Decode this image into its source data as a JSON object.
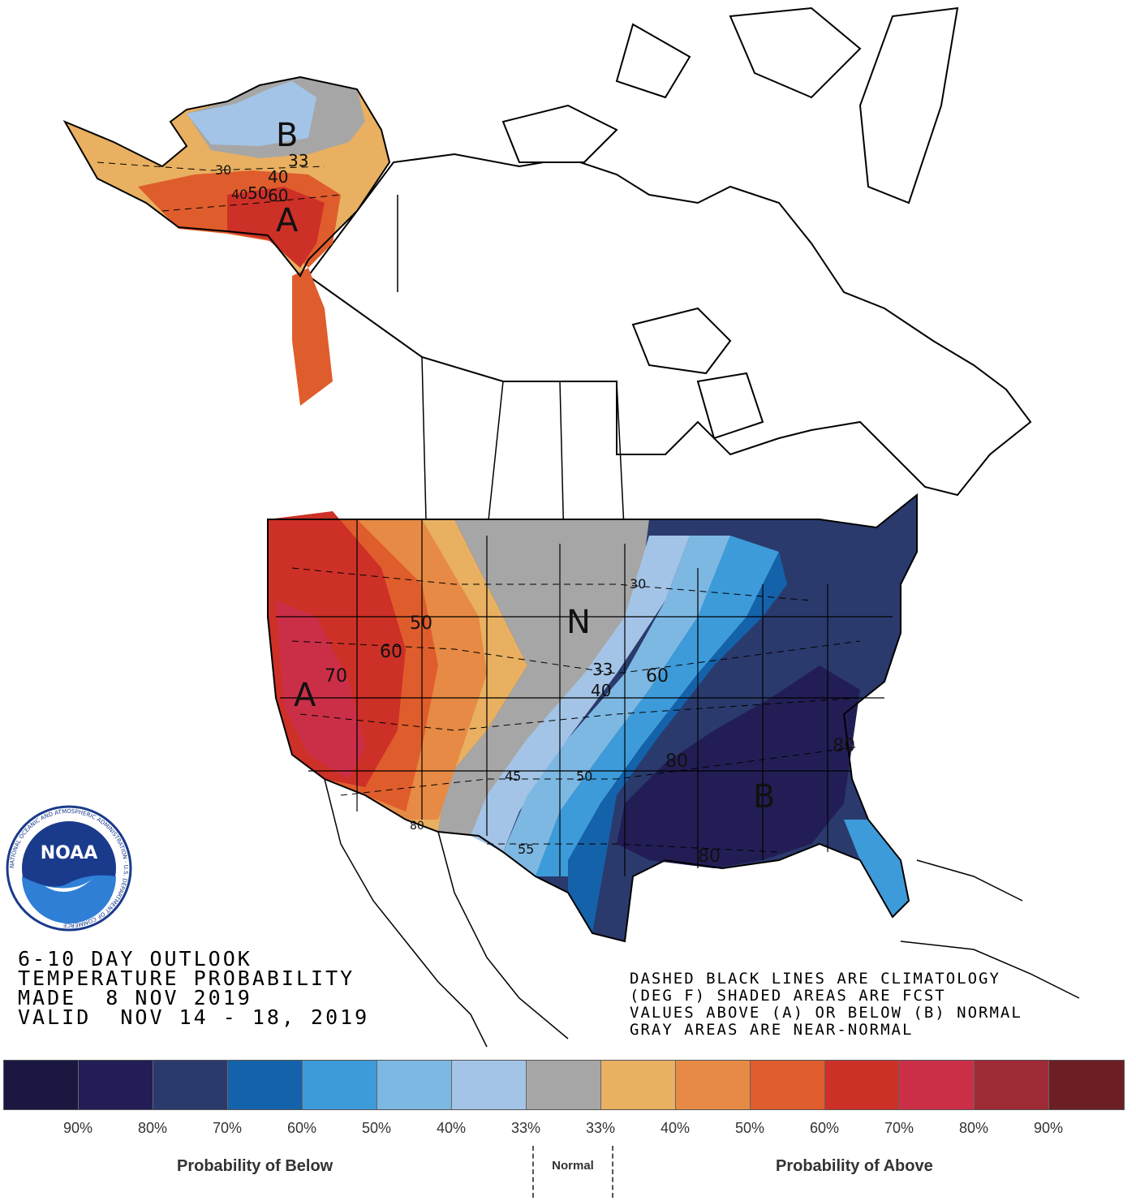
{
  "map": {
    "big_letters": [
      {
        "text": "B",
        "region": "northern-alaska"
      },
      {
        "text": "A",
        "region": "southern-alaska"
      },
      {
        "text": "N",
        "region": "northern-plains"
      },
      {
        "text": "A",
        "region": "california"
      },
      {
        "text": "B",
        "region": "southeast-us"
      }
    ],
    "contour_labels": [
      "33",
      "40",
      "50",
      "60",
      "30",
      "40",
      "50",
      "60",
      "70",
      "30",
      "33",
      "40",
      "45",
      "50",
      "55",
      "60",
      "80",
      "80",
      "80",
      "80"
    ],
    "colors": {
      "above_33": "#e8b060",
      "above_40": "#e68a45",
      "above_50": "#df5d2c",
      "above_60": "#cd3027",
      "above_70": "#cb2f48",
      "normal": "#a6a6a6",
      "below_33": "#a3c4e6",
      "below_40": "#8bbde6",
      "below_50": "#3e9ad8",
      "below_60": "#1662aa",
      "below_70": "#2b3a6d",
      "below_80": "#1f1f55",
      "below_90": "#191740"
    }
  },
  "logo": {
    "text": "NOAA",
    "ring_text": "NATIONAL OCEANIC AND ATMOSPHERIC ADMINISTRATION · U.S. DEPARTMENT OF COMMERCE"
  },
  "title_block": {
    "line1": "6-10 DAY OUTLOOK",
    "line2": "TEMPERATURE PROBABILITY",
    "line3": "MADE  8 NOV 2019",
    "line4": "VALID  NOV 14 - 18, 2019"
  },
  "note_block": {
    "line1": "DASHED BLACK LINES ARE CLIMATOLOGY",
    "line2": "(DEG F) SHADED AREAS ARE FCST",
    "line3": "VALUES ABOVE (A) OR BELOW (B) NORMAL",
    "line4": "GRAY AREAS ARE NEAR-NORMAL"
  },
  "legend": {
    "swatches": [
      "#1a1840",
      "#221e55",
      "#2b3a6d",
      "#1462aa",
      "#3d9bd9",
      "#7db8e3",
      "#a3c4e6",
      "#a6a6a6",
      "#e8b060",
      "#e68a45",
      "#df5d2c",
      "#cd3027",
      "#cb2f48",
      "#9e2a35",
      "#6b1f24"
    ],
    "tick_labels": [
      "90%",
      "80%",
      "70%",
      "60%",
      "50%",
      "40%",
      "33%",
      "33%",
      "40%",
      "50%",
      "60%",
      "70%",
      "80%",
      "90%"
    ],
    "below_title": "Probability of Below",
    "normal_title": "Normal",
    "above_title": "Probability of Above"
  }
}
